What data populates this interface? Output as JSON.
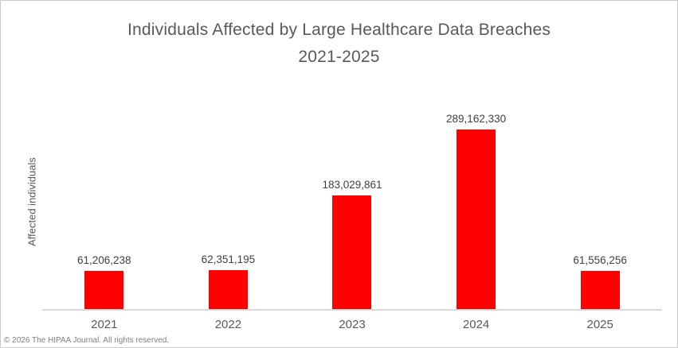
{
  "window": {
    "background_color": "#ffffff",
    "border_color": "#c9c9c9"
  },
  "chart_data": {
    "type": "bar",
    "title": "Individuals Affected by Large Healthcare Data Breaches",
    "subtitle": "2021-2025",
    "categories": [
      "2021",
      "2022",
      "2023",
      "2024",
      "2025"
    ],
    "values": [
      61206238,
      62351195,
      183029861,
      289162330,
      61556256
    ],
    "value_labels": [
      "61,206,238",
      "62,351,195",
      "183,029,861",
      "289,162,330",
      "61,556,256"
    ],
    "xlabel": "",
    "ylabel": "Affected individuals",
    "ylim": [
      0,
      289162330
    ],
    "grid": false,
    "legend": false,
    "data_labels": true,
    "bar_color": "#ff0000",
    "axis_line_color": "#d9d9d9",
    "title_color": "#595959",
    "label_color": "#404040"
  },
  "footer": {
    "copyright": "© 2026 The HIPAA Journal. All rights reserved."
  }
}
